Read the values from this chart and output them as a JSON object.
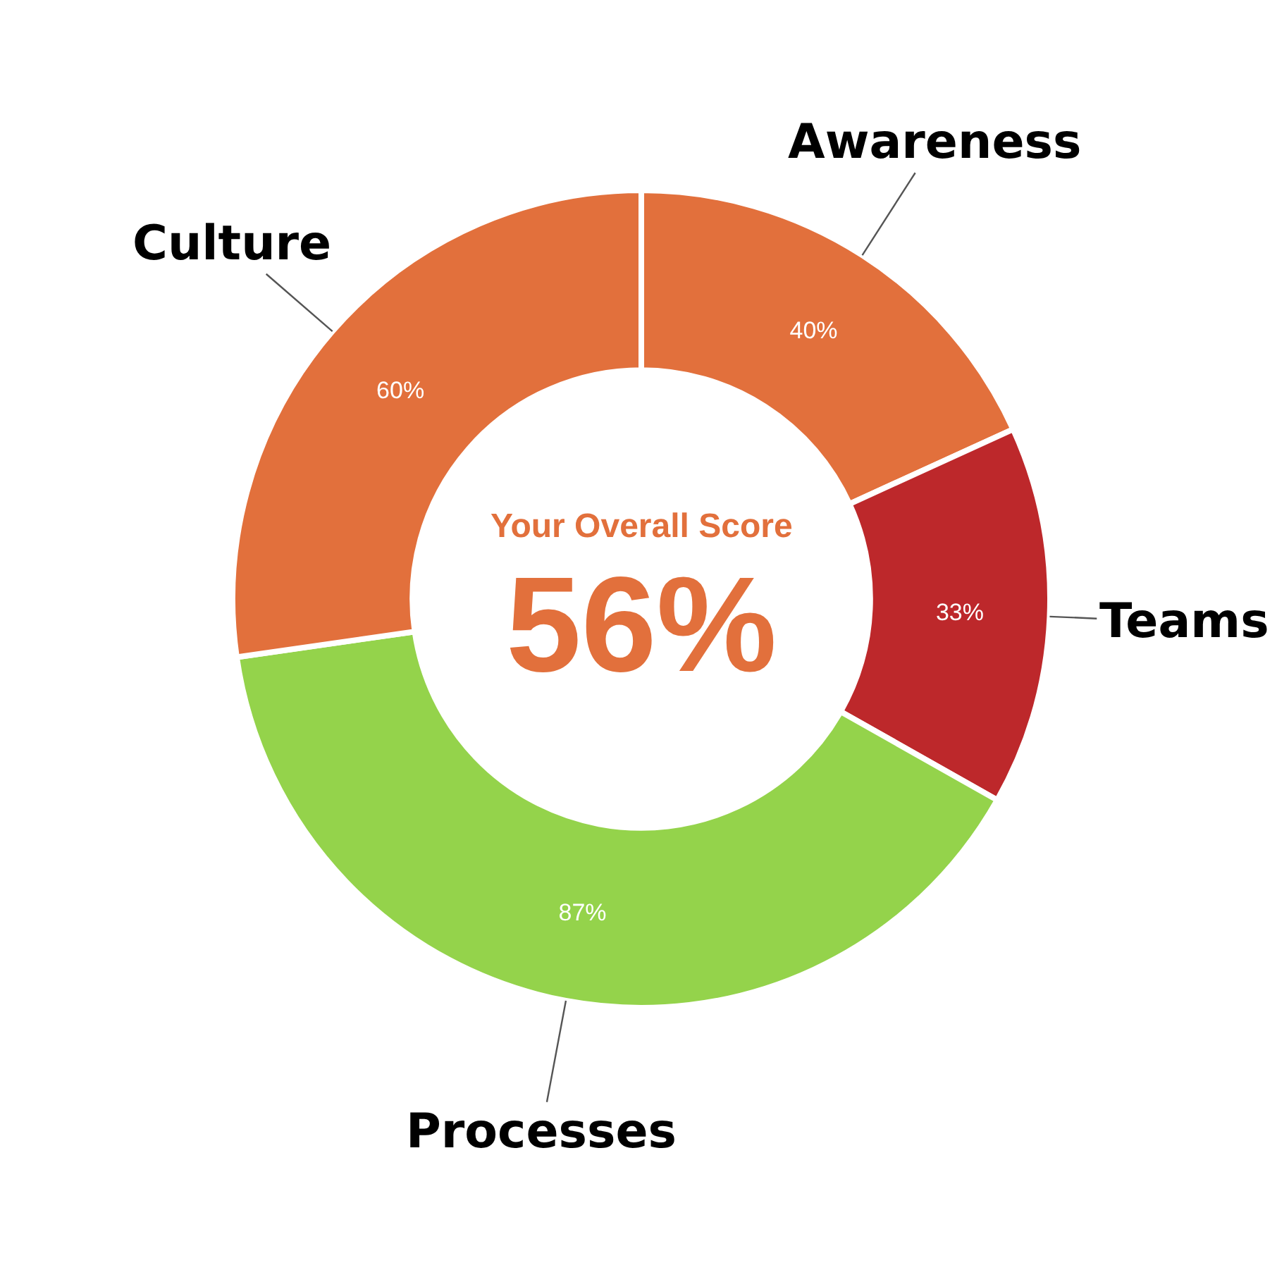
{
  "chart_data": {
    "type": "donut",
    "categories": [
      "Awareness",
      "Teams",
      "Processes",
      "Culture"
    ],
    "values": [
      40,
      33,
      87,
      60
    ],
    "colors": [
      "#e2703c",
      "#bd282b",
      "#94d34b",
      "#e2703c"
    ],
    "value_labels": [
      "40%",
      "33%",
      "87%",
      "60%"
    ],
    "annotations": [
      "Your Overall Score",
      "56%"
    ]
  }
}
